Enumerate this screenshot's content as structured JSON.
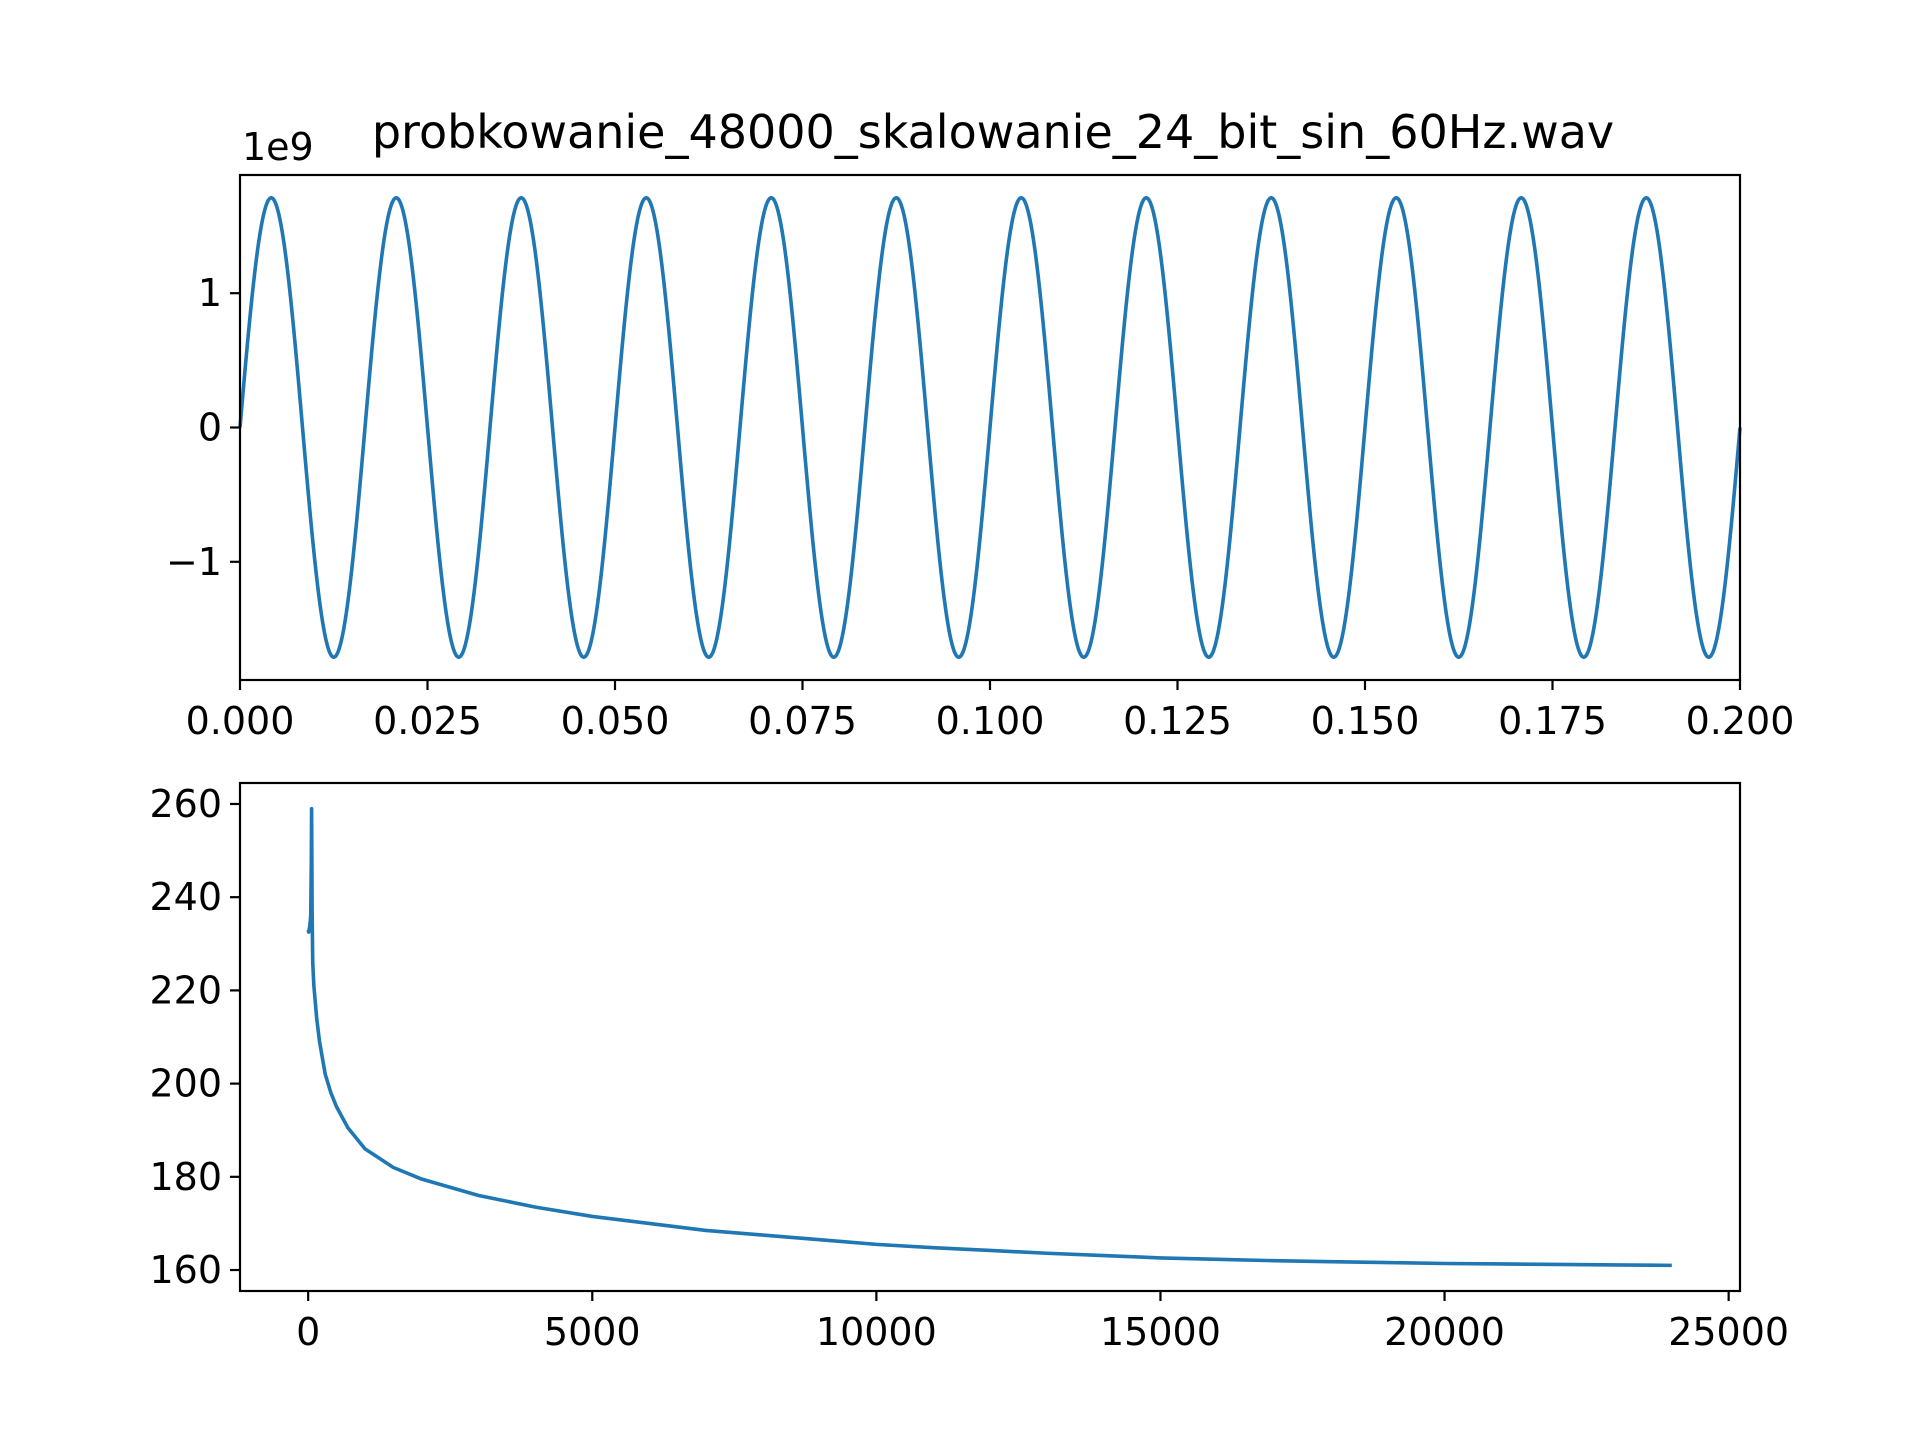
{
  "figure": {
    "title": "probkowanie_48000_skalowanie_24_bit_sin_60Hz.wav"
  },
  "chart_data": [
    {
      "type": "line",
      "title": "probkowanie_48000_skalowanie_24_bit_sin_60Hz.wav",
      "xlabel": "",
      "ylabel": "",
      "y_offset_label": "1e9",
      "xlim": [
        0.0,
        0.2
      ],
      "ylim": [
        -1.88,
        1.88
      ],
      "x_ticks": [
        0.0,
        0.025,
        0.05,
        0.075,
        0.1,
        0.125,
        0.15,
        0.175,
        0.2
      ],
      "x_tick_labels": [
        "0.000",
        "0.025",
        "0.050",
        "0.075",
        "0.100",
        "0.125",
        "0.150",
        "0.175",
        "0.200"
      ],
      "y_ticks": [
        -1,
        0,
        1
      ],
      "y_tick_labels": [
        "−1",
        "0",
        "1"
      ],
      "series": [
        {
          "color": "#1f77b4",
          "function": "sine",
          "amplitude": 1.71,
          "frequency_hz": 60,
          "x_start": 0.0,
          "x_end": 0.2
        }
      ],
      "grid": false,
      "legend": "none"
    },
    {
      "type": "line",
      "title": "",
      "xlabel": "",
      "ylabel": "",
      "xlim": [
        -1200,
        25200
      ],
      "ylim": [
        155.5,
        264.5
      ],
      "x_ticks": [
        0,
        5000,
        10000,
        15000,
        20000,
        25000
      ],
      "x_tick_labels": [
        "0",
        "5000",
        "10000",
        "15000",
        "20000",
        "25000"
      ],
      "y_ticks": [
        160,
        180,
        200,
        220,
        240,
        260
      ],
      "y_tick_labels": [
        "160",
        "180",
        "200",
        "220",
        "240",
        "260"
      ],
      "series": [
        {
          "color": "#1f77b4",
          "x": [
            0,
            10,
            30,
            45,
            55,
            60,
            65,
            70,
            80,
            100,
            150,
            200,
            300,
            400,
            500,
            700,
            1000,
            1500,
            2000,
            3000,
            4000,
            5000,
            6000,
            7000,
            8000,
            9000,
            10000,
            11000,
            12000,
            13000,
            14000,
            15000,
            16000,
            17000,
            18000,
            19000,
            20000,
            21000,
            22000,
            23000,
            24000
          ],
          "y": [
            233,
            232.5,
            234,
            236,
            248,
            259,
            247,
            236,
            226,
            221,
            214,
            209,
            202,
            198,
            195,
            190.5,
            186,
            182,
            179.5,
            176,
            173.5,
            171.5,
            170,
            168.5,
            167.5,
            166.5,
            165.5,
            164.8,
            164.2,
            163.6,
            163.1,
            162.6,
            162.3,
            162.0,
            161.8,
            161.6,
            161.4,
            161.3,
            161.2,
            161.1,
            161.0
          ]
        }
      ],
      "grid": false,
      "legend": "none"
    }
  ]
}
